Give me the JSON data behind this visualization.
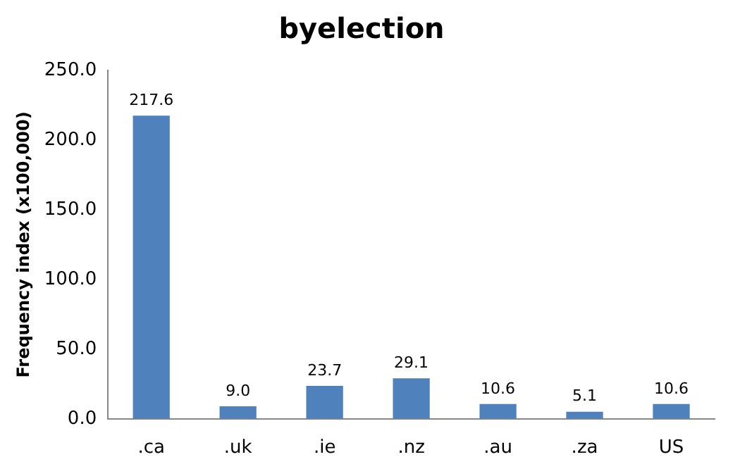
{
  "chart_data": {
    "type": "bar",
    "title": "byelection",
    "ylabel": "Frequency index (x100,000)",
    "categories": [
      ".ca",
      ".uk",
      ".ie",
      ".nz",
      ".au",
      ".za",
      "US"
    ],
    "values": [
      217.6,
      9.0,
      23.7,
      29.1,
      10.6,
      5.1,
      10.6
    ],
    "value_labels": [
      "217.6",
      "9.0",
      "23.7",
      "29.1",
      "10.6",
      "5.1",
      "10.6"
    ],
    "color": "#4f81bd",
    "ylim": [
      0,
      250
    ],
    "yticks": [
      {
        "value": 0,
        "label": "0.0"
      },
      {
        "value": 50,
        "label": "50.0"
      },
      {
        "value": 100,
        "label": "100.0"
      },
      {
        "value": 150,
        "label": "150.0"
      },
      {
        "value": 200,
        "label": "200.0"
      },
      {
        "value": 250,
        "label": "250.0"
      }
    ],
    "grid": false,
    "legend": false
  }
}
